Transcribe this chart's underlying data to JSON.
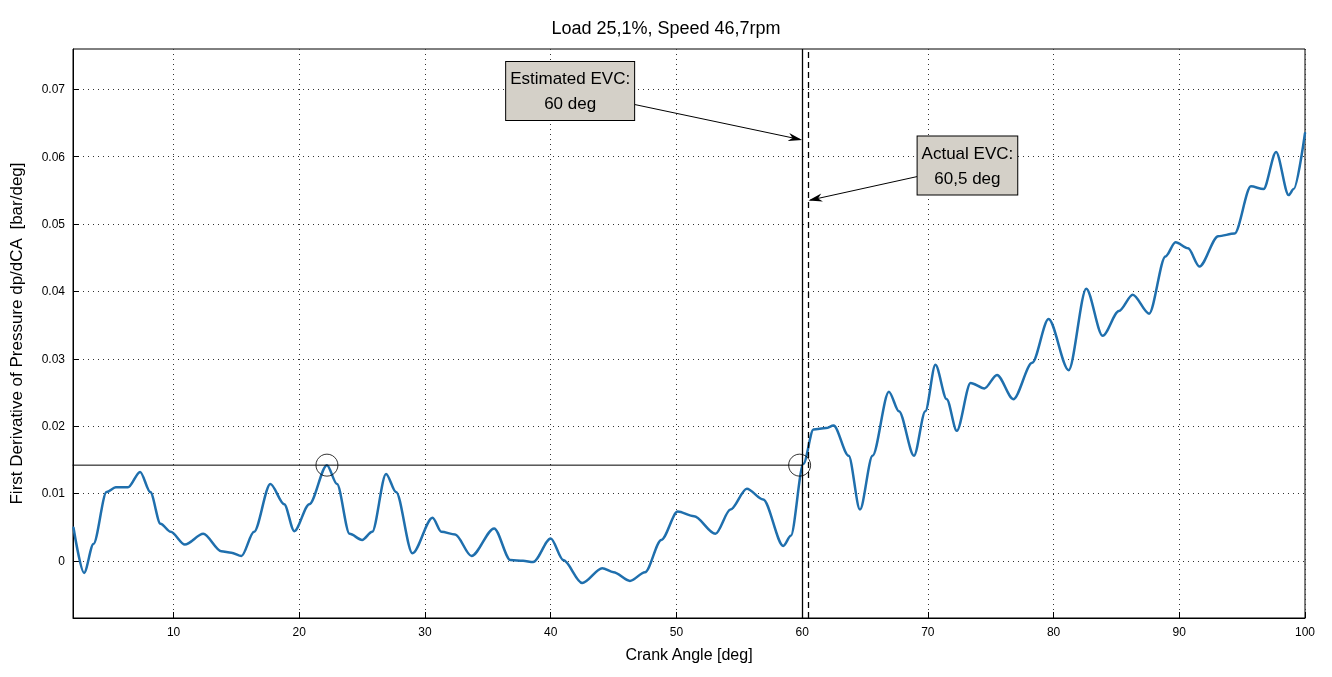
{
  "chart_data": {
    "type": "line",
    "title": "Load 25,1%, Speed 46,7rpm",
    "xlabel": "Crank Angle [deg]",
    "ylabel": "First Derivative of Pressure dp/dCA  [bar/deg]",
    "xlim": [
      2,
      100
    ],
    "xticks": [
      10,
      20,
      30,
      40,
      50,
      60,
      70,
      80,
      90,
      100
    ],
    "ylim": [
      -0.0085,
      0.076
    ],
    "yticks": [
      0,
      0.01,
      0.02,
      0.03,
      0.04,
      0.05,
      0.06,
      0.07
    ],
    "grid": true,
    "series": [
      {
        "color": "#1f6fad",
        "marker": "none",
        "x": [
          2.04,
          2.88,
          3.63,
          4.67,
          5.4,
          6.37,
          7.34,
          8.15,
          8.96,
          9.77,
          10.9,
          12.36,
          13.8,
          14.6,
          15.4,
          16.4,
          17.7,
          18.8,
          19.6,
          20.8,
          22.2,
          23.0,
          24.0,
          25.0,
          25.8,
          26.9,
          27.7,
          29.0,
          30.6,
          31.3,
          32.4,
          33.7,
          35.5,
          36.8,
          37.8,
          38.6,
          40.0,
          41.0,
          42.5,
          44.1,
          45.0,
          46.3,
          47.5,
          48.8,
          50.1,
          51.4,
          53.1,
          54.3,
          55.6,
          56.9,
          58.5,
          59.1,
          60.1,
          60.9,
          61.9,
          62.5,
          63.7,
          64.6,
          65.6,
          66.9,
          67.7,
          68.9,
          69.8,
          70.6,
          71.5,
          72.3,
          73.4,
          74.5,
          75.5,
          76.8,
          78.3,
          79.6,
          81.2,
          82.6,
          83.9,
          85.2,
          86.3,
          87.6,
          88.9,
          89.7,
          90.7,
          91.6,
          93.1,
          94.4,
          95.7,
          96.7,
          97.7,
          98.7,
          99.1,
          100
        ],
        "values": [
          0.0049,
          -0.0018,
          0.0025,
          0.0102,
          0.0109,
          0.0109,
          0.0132,
          0.0102,
          0.0055,
          0.0043,
          0.0024,
          0.004,
          0.0014,
          0.0012,
          0.0007,
          0.0043,
          0.0114,
          0.0084,
          0.0044,
          0.0084,
          0.0142,
          0.0114,
          0.004,
          0.0031,
          0.0043,
          0.0129,
          0.0102,
          0.0011,
          0.0064,
          0.0043,
          0.0039,
          0.0007,
          0.0048,
          0.0001,
          0.0,
          -0.0002,
          0.0033,
          0.0001,
          -0.0033,
          -0.0011,
          -0.0017,
          -0.003,
          -0.0017,
          0.0031,
          0.0073,
          0.0066,
          0.004,
          0.0076,
          0.0107,
          0.0091,
          0.0022,
          0.0037,
          0.0144,
          0.0195,
          0.0197,
          0.0201,
          0.0156,
          0.0076,
          0.0156,
          0.0251,
          0.0222,
          0.0156,
          0.0222,
          0.0291,
          0.024,
          0.0193,
          0.0264,
          0.0256,
          0.0276,
          0.024,
          0.0294,
          0.0359,
          0.0283,
          0.0404,
          0.0334,
          0.0371,
          0.0395,
          0.0367,
          0.0452,
          0.0473,
          0.0464,
          0.0437,
          0.0482,
          0.0486,
          0.0556,
          0.0552,
          0.0607,
          0.0543,
          0.0552,
          0.0635
        ]
      },
      {
        "color": "#000000",
        "marker": "none",
        "x": [
          2,
          60
        ],
        "values": [
          0.0142,
          0.0142
        ]
      },
      {
        "type": "scatter",
        "color": "#000000",
        "marker": "circle",
        "x": [
          22.2,
          59.8
        ],
        "values": [
          0.0142,
          0.0142
        ]
      }
    ],
    "ref_lines": [
      {
        "axis": "x",
        "value": 60,
        "color": "#000000",
        "line_style": "solid"
      },
      {
        "axis": "x",
        "value": 60.5,
        "color": "#000000",
        "line_style": "dashed"
      }
    ],
    "annotations": [
      {
        "text": "Estimated EVC:\n60 deg",
        "x": 60,
        "y": 0.0625
      },
      {
        "text": "Actual EVC:\n60,5 deg",
        "x": 60.5,
        "y": 0.0535
      }
    ]
  }
}
